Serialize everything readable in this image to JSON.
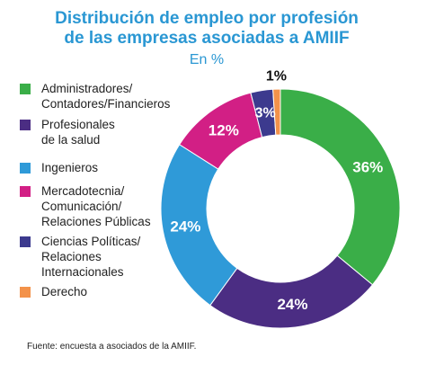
{
  "header": {
    "title_line1": "Distribución de empleo por profesión",
    "title_line2": "de las empresas asociadas a AMIIF",
    "subtitle": "En %"
  },
  "source": "Fuente: encuesta a asociados de la AMIIF.",
  "chart_data": {
    "type": "pie",
    "donut": true,
    "title": "Distribución de empleo por profesión de las empresas asociadas a AMIIF",
    "subtitle": "En %",
    "legend_position": "left",
    "categories": [
      "Administradores/\nContadores/Financieros",
      "Profesionales\nde la salud",
      "Ingenieros",
      "Mercadotecnia/\nComunicación/\nRelaciones Públicas",
      "Ciencias Políticas/\nRelaciones\nInternacionales",
      "Derecho"
    ],
    "values": [
      36,
      24,
      24,
      12,
      3,
      1
    ],
    "labels": [
      "36%",
      "24%",
      "24%",
      "12%",
      "3%",
      "1%"
    ],
    "colors": [
      "#3aae48",
      "#4b2d83",
      "#2f9ad8",
      "#d21f85",
      "#3c3a8e",
      "#f3924a"
    ]
  }
}
